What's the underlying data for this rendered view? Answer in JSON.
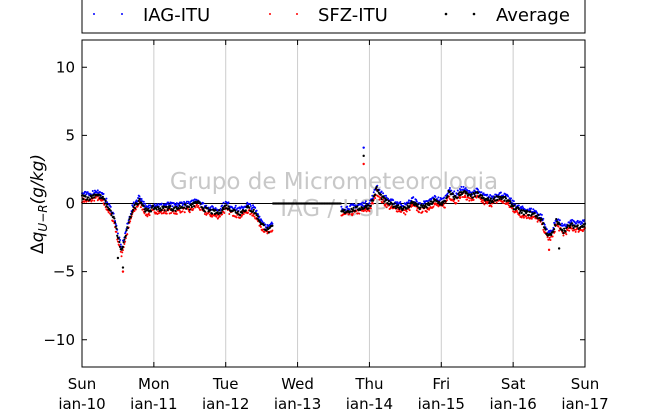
{
  "chart_data": {
    "type": "scatter",
    "title": "",
    "xlabel": "",
    "ylabel": "Δq_{U−R}(g/kg)",
    "ylabel_parts": {
      "delta": "Δ",
      "q": "q",
      "sub": "U−R",
      "unit": "(g/kg)"
    },
    "xlim": [
      0,
      7
    ],
    "ylim": [
      -12,
      12
    ],
    "yticks": [
      -10,
      -5,
      0,
      5,
      10
    ],
    "ytick_labels": [
      "−10",
      "−5",
      "0",
      "5",
      "10"
    ],
    "xticks": [
      {
        "x": 0,
        "day": "Sun",
        "date": "Jan-10"
      },
      {
        "x": 1,
        "day": "Mon",
        "date": "Jan-11"
      },
      {
        "x": 2,
        "day": "Tue",
        "date": "Jan-12"
      },
      {
        "x": 3,
        "day": "Wed",
        "date": "Jan-13"
      },
      {
        "x": 4,
        "day": "Thu",
        "date": "Jan-14"
      },
      {
        "x": 5,
        "day": "Fri",
        "date": "Jan-15"
      },
      {
        "x": 6,
        "day": "Sat",
        "date": "Jan-16"
      },
      {
        "x": 7,
        "day": "Sun",
        "date": "Jan-17"
      }
    ],
    "grid": "vertical",
    "zero_line": true,
    "legend_position": "top",
    "x_units": "days since Sun Jan-10 00:00",
    "average": {
      "x": [
        0,
        0.1,
        0.2,
        0.3,
        0.4,
        0.45,
        0.5,
        0.55,
        0.6,
        0.65,
        0.7,
        0.8,
        0.9,
        1.0,
        1.1,
        1.2,
        1.3,
        1.4,
        1.5,
        1.6,
        1.7,
        1.8,
        1.9,
        2.0,
        2.1,
        2.2,
        2.3,
        2.4,
        2.5,
        2.55,
        2.6,
        2.65,
        4.0,
        4.05,
        4.1,
        4.15,
        4.2,
        4.3,
        4.4,
        4.5,
        4.6,
        4.7,
        4.8,
        4.9,
        5.0,
        5.05,
        5.1,
        5.2,
        5.3,
        5.4,
        5.5,
        5.6,
        5.7,
        5.8,
        5.9,
        6.0,
        6.1,
        6.2,
        6.3,
        6.4,
        6.45,
        6.5,
        6.55,
        6.6,
        6.7,
        6.8,
        6.9,
        7.0
      ],
      "y": [
        0.5,
        0.4,
        0.7,
        0.3,
        -0.6,
        -1.2,
        -2.5,
        -3.5,
        -2.5,
        -1.5,
        -0.5,
        0.3,
        -0.6,
        -0.3,
        -0.4,
        -0.3,
        -0.4,
        -0.2,
        -0.3,
        0.1,
        -0.4,
        -0.6,
        -0.7,
        -0.2,
        -0.5,
        -0.7,
        -0.3,
        -0.6,
        -1.5,
        -1.8,
        -2.0,
        -1.7,
        -0.2,
        0.3,
        1.1,
        0.6,
        0.3,
        -0.1,
        -0.2,
        -0.4,
        0.1,
        -0.3,
        -0.2,
        0.2,
        0.0,
        0.1,
        0.8,
        0.4,
        0.9,
        0.5,
        0.7,
        0.3,
        0.2,
        0.5,
        0.3,
        -0.2,
        -0.6,
        -0.7,
        -0.8,
        -1.2,
        -2.0,
        -2.4,
        -2.2,
        -1.3,
        -2.0,
        -1.6,
        -1.7,
        -1.6
      ]
    },
    "series": [
      {
        "name": "IAG-ITU",
        "color": "#0000ff",
        "offset": 0.25
      },
      {
        "name": "SFZ-ITU",
        "color": "#ff0000",
        "offset": -0.25
      },
      {
        "name": "Average",
        "color": "#000000",
        "offset": 0
      }
    ],
    "gap": {
      "from": 2.65,
      "to": 3.6,
      "value": 0.0
    },
    "outliers": [
      {
        "series": "IAG-ITU",
        "x": 3.92,
        "y": 4.1
      },
      {
        "series": "Average",
        "x": 3.92,
        "y": 3.5
      },
      {
        "series": "SFZ-ITU",
        "x": 3.92,
        "y": 2.9
      },
      {
        "series": "SFZ-ITU",
        "x": 0.57,
        "y": -5.0
      },
      {
        "series": "Average",
        "x": 0.57,
        "y": -4.7
      },
      {
        "series": "Average",
        "x": 0.5,
        "y": -4.0
      },
      {
        "series": "SFZ-ITU",
        "x": 6.5,
        "y": -3.4
      },
      {
        "series": "Average",
        "x": 6.64,
        "y": -3.3
      }
    ],
    "watermark": [
      "Grupo de Micrometeorologia",
      "IAG / USP"
    ]
  }
}
